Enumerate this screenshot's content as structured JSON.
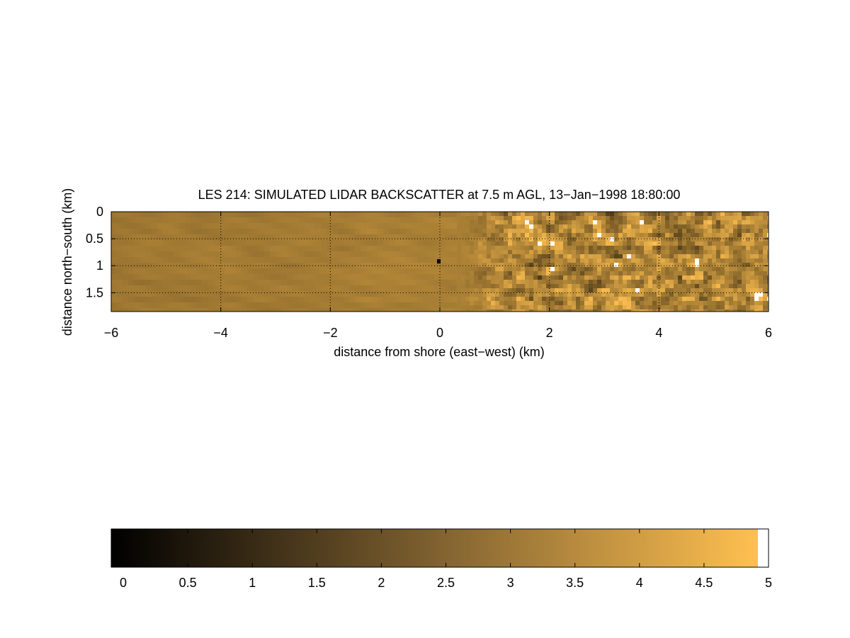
{
  "chart_data": [
    {
      "type": "heatmap",
      "title": "LES 214: SIMULATED LIDAR BACKSCATTER at 7.5 m AGL, 13−Jan−1998 18:80:00",
      "xlabel": "distance from shore (east−west) (km)",
      "ylabel": "distance north−south (km)",
      "xlim": [
        -6,
        6
      ],
      "ylim": [
        0,
        1.85
      ],
      "y_reversed": true,
      "grid": true,
      "xticks": [
        -6,
        -4,
        -2,
        0,
        2,
        4,
        6
      ],
      "xtick_labels": [
        "−6",
        "−4",
        "−2",
        "0",
        "2",
        "4",
        "6"
      ],
      "yticks": [
        0,
        0.5,
        1,
        1.5
      ],
      "ytick_labels": [
        "0",
        "0.5",
        "1",
        "1.5"
      ],
      "field_description": {
        "offshore_west": {
          "x_range": [
            -6,
            0
          ],
          "value_range": [
            2.9,
            3.6
          ]
        },
        "onshore_east": {
          "x_range": [
            0,
            6
          ],
          "value_range": [
            1.4,
            5.0
          ],
          "saturated_white_above": 4.9
        }
      },
      "point_marker": {
        "x": 0,
        "y": 0.92,
        "value": 0
      }
    },
    {
      "type": "colorbar",
      "range": [
        0,
        5
      ],
      "ticks": [
        0,
        0.5,
        1,
        1.5,
        2,
        2.5,
        3,
        3.5,
        4,
        4.5,
        5
      ],
      "tick_labels": [
        "0",
        "0.5",
        "1",
        "1.5",
        "2",
        "2.5",
        "3",
        "3.5",
        "4",
        "4.5",
        "5"
      ],
      "colors": {
        "low": "#000000",
        "mid": "#a07a3c",
        "high": "#ffc050",
        "saturated": "#ffffff"
      }
    }
  ]
}
